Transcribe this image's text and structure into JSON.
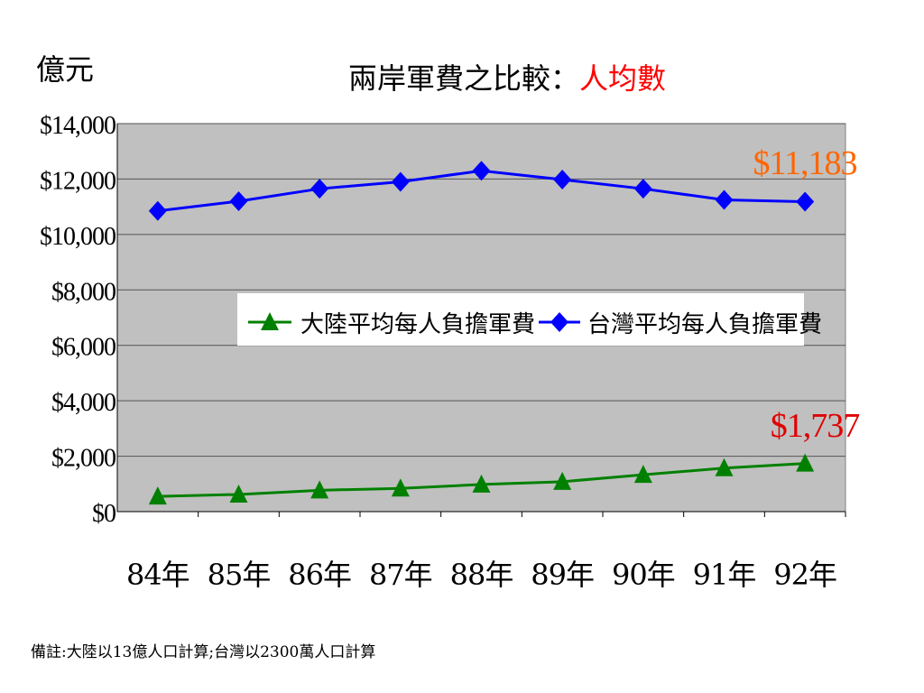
{
  "chart_data": {
    "type": "line",
    "title_main": "兩岸軍費之比較：",
    "title_highlight": "人均數",
    "unit_label": "億元",
    "categories": [
      "84年",
      "85年",
      "86年",
      "87年",
      "88年",
      "89年",
      "90年",
      "91年",
      "92年"
    ],
    "ylim": [
      0,
      14000
    ],
    "y_ticks": [
      {
        "value": 0,
        "label": "$0"
      },
      {
        "value": 2000,
        "label": "$2,000"
      },
      {
        "value": 4000,
        "label": "$4,000"
      },
      {
        "value": 6000,
        "label": "$6,000"
      },
      {
        "value": 8000,
        "label": "$8,000"
      },
      {
        "value": 10000,
        "label": "$10,000"
      },
      {
        "value": 12000,
        "label": "$12,000"
      },
      {
        "value": 14000,
        "label": "$14,000"
      }
    ],
    "grid": true,
    "legend_position": "center",
    "series": [
      {
        "name": "大陸平均每人負擔軍費",
        "color": "#008000",
        "marker": "triangle",
        "values": [
          550,
          620,
          770,
          840,
          980,
          1080,
          1330,
          1570,
          1737
        ],
        "end_label": "$1,737",
        "end_label_color": "#e00000"
      },
      {
        "name": "台灣平均每人負擔軍費",
        "color": "#0000ff",
        "marker": "diamond",
        "values": [
          10850,
          11200,
          11650,
          11900,
          12300,
          11980,
          11650,
          11250,
          11183
        ],
        "end_label": "$11,183",
        "end_label_color": "#ff6600"
      }
    ],
    "plot_background": "#c0c0c0",
    "title_highlight_color": "#ff0000"
  },
  "footnote": "備註:大陸以13億人口計算;台灣以2300萬人口計算"
}
